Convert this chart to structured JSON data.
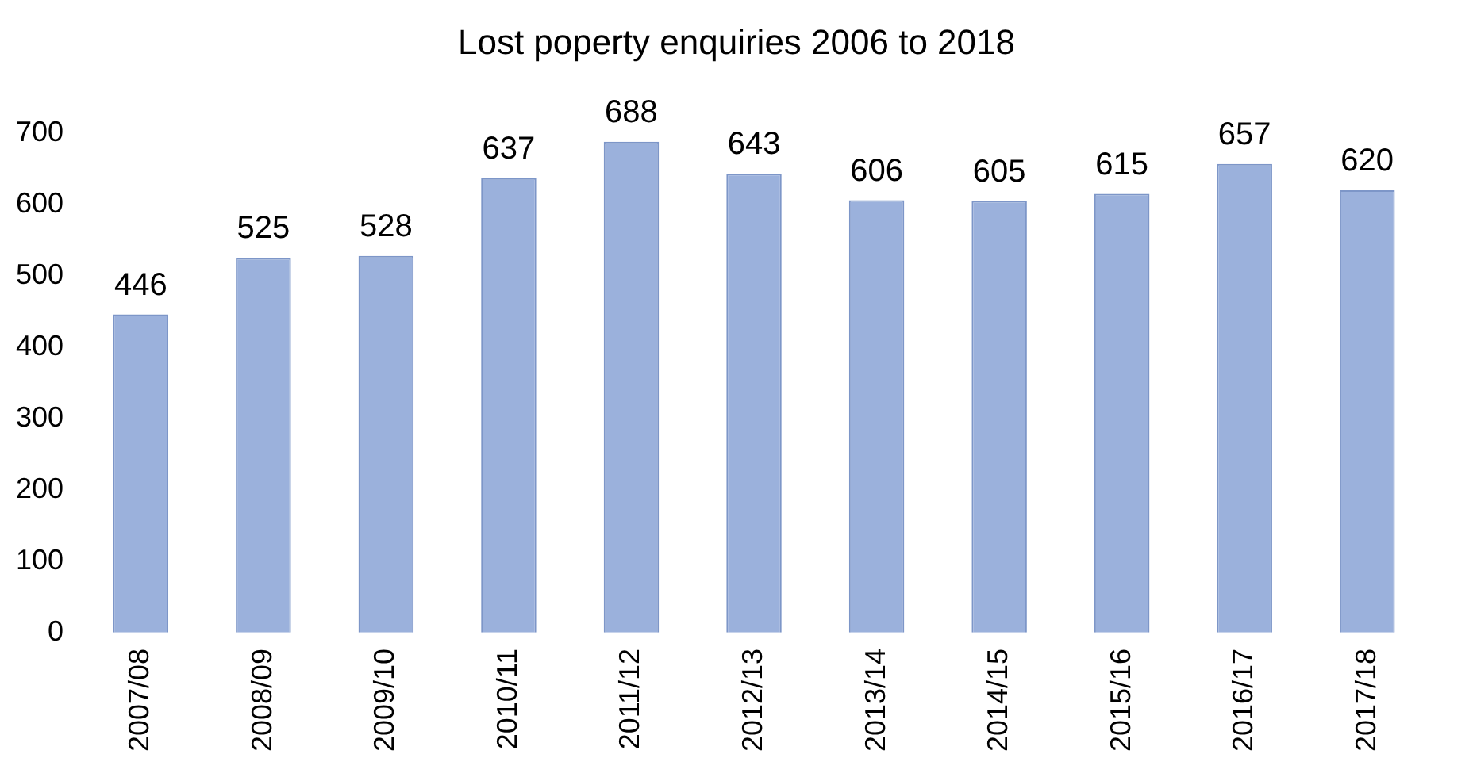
{
  "chart_data": {
    "type": "bar",
    "title": "Lost poperty enquiries 2006 to 2018",
    "categories": [
      "2007/08",
      "2008/09",
      "2009/10",
      "2010/11",
      "2011/12",
      "2012/13",
      "2013/14",
      "2014/15",
      "2015/16",
      "2016/17",
      "2017/18"
    ],
    "values": [
      446,
      525,
      528,
      637,
      688,
      643,
      606,
      605,
      615,
      657,
      620
    ],
    "color": "#9bb1dc",
    "ylim": [
      0,
      700
    ],
    "yticks": [
      0,
      100,
      200,
      300,
      400,
      500,
      600,
      700
    ],
    "grid": false,
    "legend": false,
    "data_labels": true
  }
}
